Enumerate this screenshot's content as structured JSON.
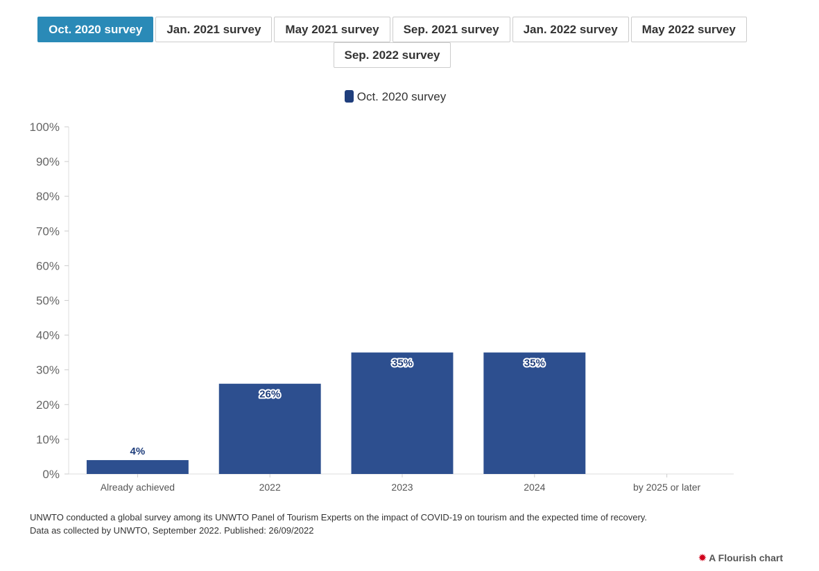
{
  "tabs": [
    {
      "label": "Oct. 2020 survey",
      "active": true
    },
    {
      "label": "Jan. 2021 survey",
      "active": false
    },
    {
      "label": "May 2021 survey",
      "active": false
    },
    {
      "label": "Sep. 2021 survey",
      "active": false
    },
    {
      "label": "Jan. 2022 survey",
      "active": false
    },
    {
      "label": "May 2022 survey",
      "active": false
    },
    {
      "label": "Sep. 2022 survey",
      "active": false
    }
  ],
  "chart_data": {
    "type": "bar",
    "categories": [
      "Already achieved",
      "2022",
      "2023",
      "2024",
      "by 2025 or later"
    ],
    "series": [
      {
        "name": "Oct. 2020 survey",
        "values": [
          4,
          26,
          35,
          35,
          0
        ],
        "color": "#2d4f8f"
      }
    ],
    "data_labels": [
      "4%",
      "26%",
      "35%",
      "35%",
      ""
    ],
    "y_ticks": [
      "0%",
      "10%",
      "20%",
      "30%",
      "40%",
      "50%",
      "60%",
      "70%",
      "80%",
      "90%",
      "100%"
    ],
    "ylim": [
      0,
      100
    ],
    "legend_position": "top-center",
    "grid": false
  },
  "footnote": {
    "line1": "UNWTO conducted a global survey among its UNWTO Panel of Tourism Experts on the impact of COVID-19 on tourism and the expected time of recovery.",
    "line2": "Data as collected by UNWTO, September 2022. Published: 26/09/2022"
  },
  "branding": {
    "label": "A Flourish chart",
    "icon": "flourish-logo-icon"
  }
}
